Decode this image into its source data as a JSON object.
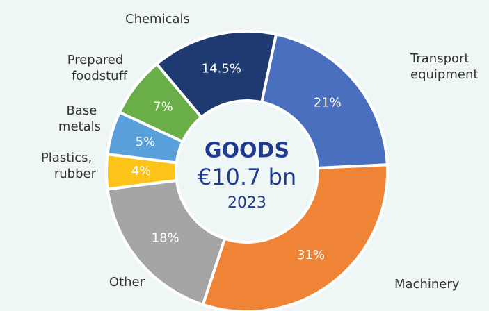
{
  "chart_data": {
    "type": "donut",
    "center_title": "GOODS",
    "center_value": "€10.7 bn",
    "center_year": "2023",
    "categories": [
      "Transport equipment",
      "Machinery",
      "Other",
      "Plastics, rubber",
      "Base metals",
      "Prepared foodstuff",
      "Chemicals"
    ],
    "values": [
      21,
      31,
      18,
      4,
      5,
      7,
      14.5
    ],
    "value_labels": [
      "21%",
      "31%",
      "18%",
      "4%",
      "5%",
      "7%",
      "14.5%"
    ],
    "colors": [
      "#4a6fbf",
      "#ef8437",
      "#a5a5a5",
      "#fcc419",
      "#5aa0da",
      "#6aae47",
      "#1f3a70"
    ]
  }
}
